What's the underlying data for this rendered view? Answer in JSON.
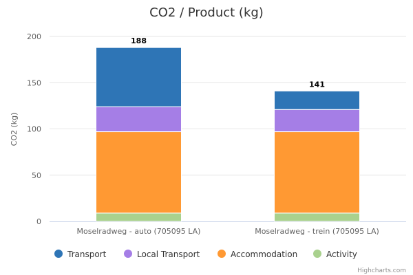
{
  "chart_data": {
    "type": "bar",
    "stacked": true,
    "title": "CO2 / Product (kg)",
    "ylabel": "CO2 (kg)",
    "xlabel": "",
    "ylim": [
      0,
      200
    ],
    "yticks": [
      0,
      50,
      100,
      150,
      200
    ],
    "categories": [
      "Moselradweg - auto (705095 LA)",
      "Moselradweg - trein (705095 LA)"
    ],
    "series": [
      {
        "name": "Activity",
        "color": "#a9d18e",
        "values": [
          9,
          9
        ]
      },
      {
        "name": "Accommodation",
        "color": "#ff9933",
        "values": [
          88,
          88
        ]
      },
      {
        "name": "Local Transport",
        "color": "#a57ee6",
        "values": [
          27,
          24
        ]
      },
      {
        "name": "Transport",
        "color": "#2e75b6",
        "values": [
          64,
          20
        ]
      }
    ],
    "totals": [
      188,
      141
    ],
    "legend_order": [
      "Transport",
      "Local Transport",
      "Accommodation",
      "Activity"
    ],
    "legend_position": "bottom",
    "grid": true
  },
  "credits": "Highcharts.com"
}
